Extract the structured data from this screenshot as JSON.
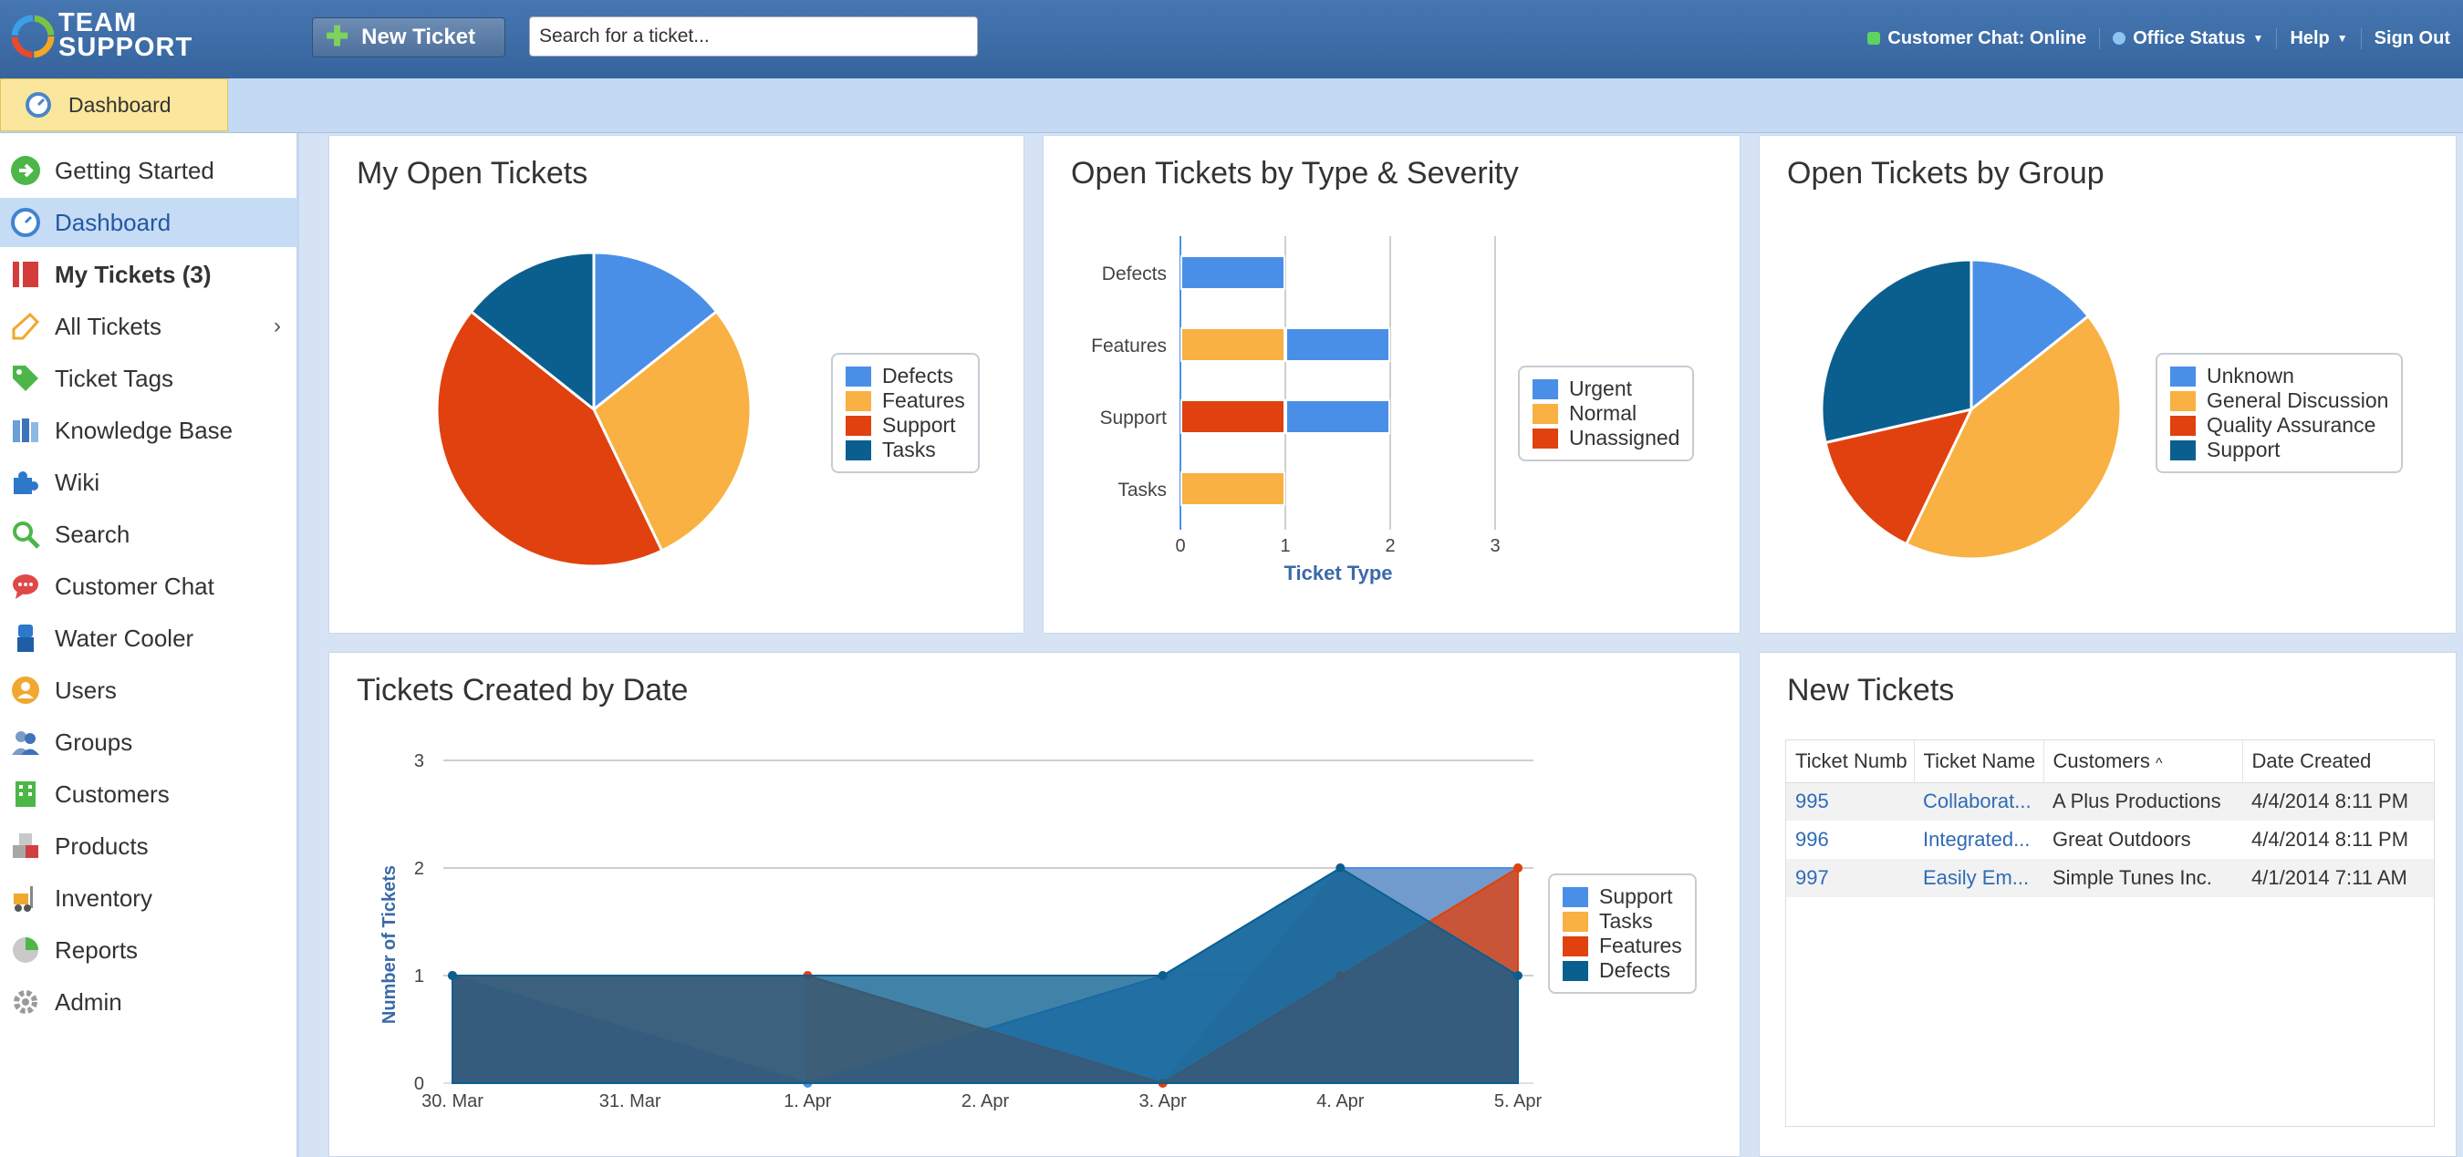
{
  "header": {
    "logo_line1": "TEAM",
    "logo_line2": "SUPPORT",
    "new_ticket_label": "New Ticket",
    "search_placeholder": "Search for a ticket...",
    "customer_chat": "Customer Chat: Online",
    "office_status": "Office Status",
    "help": "Help",
    "sign_out": "Sign Out"
  },
  "tab": {
    "label": "Dashboard"
  },
  "sidebar": {
    "items": [
      {
        "label": "Getting Started"
      },
      {
        "label": "Dashboard"
      },
      {
        "label": "My Tickets (3)"
      },
      {
        "label": "All Tickets"
      },
      {
        "label": "Ticket Tags"
      },
      {
        "label": "Knowledge Base"
      },
      {
        "label": "Wiki"
      },
      {
        "label": "Search"
      },
      {
        "label": "Customer Chat"
      },
      {
        "label": "Water Cooler"
      },
      {
        "label": "Users"
      },
      {
        "label": "Groups"
      },
      {
        "label": "Customers"
      },
      {
        "label": "Products"
      },
      {
        "label": "Inventory"
      },
      {
        "label": "Reports"
      },
      {
        "label": "Admin"
      }
    ]
  },
  "colors": {
    "blue": "#4a8fe7",
    "orange": "#f8b142",
    "red": "#e0410e",
    "navy": "#0b5f8f"
  },
  "panels": {
    "my_open": {
      "title": "My Open Tickets"
    },
    "type_severity": {
      "title": "Open Tickets by Type & Severity"
    },
    "by_group": {
      "title": "Open Tickets by Group"
    },
    "by_date": {
      "title": "Tickets Created by Date"
    },
    "new_tickets": {
      "title": "New Tickets"
    }
  },
  "chart_data": [
    {
      "type": "pie",
      "title": "My Open Tickets",
      "labels": [
        "Defects",
        "Features",
        "Support",
        "Tasks"
      ],
      "values": [
        1,
        2,
        3,
        1
      ]
    },
    {
      "type": "bar",
      "orientation": "horizontal",
      "stacked": true,
      "title": "Open Tickets by Type & Severity",
      "categories": [
        "Defects",
        "Features",
        "Support",
        "Tasks"
      ],
      "xlabel": "Ticket Type",
      "xlim": [
        0,
        3
      ],
      "xticks": [
        "0",
        "1",
        "2",
        "3"
      ],
      "series": [
        {
          "name": "Urgent",
          "values": [
            1,
            1,
            1,
            0
          ]
        },
        {
          "name": "Normal",
          "values": [
            0,
            1,
            0,
            1
          ]
        },
        {
          "name": "Unassigned",
          "values": [
            0,
            0,
            1,
            0
          ]
        }
      ]
    },
    {
      "type": "pie",
      "title": "Open Tickets by Group",
      "labels": [
        "Unknown",
        "General Discussion",
        "Quality Assurance",
        "Support"
      ],
      "values": [
        1,
        3,
        1,
        2
      ]
    },
    {
      "type": "area",
      "title": "Tickets Created by Date",
      "ylabel": "Number of Tickets",
      "categories": [
        "30. Mar",
        "31. Mar",
        "1. Apr",
        "2. Apr",
        "3. Apr",
        "4. Apr",
        "5. Apr"
      ],
      "ylim": [
        0,
        3
      ],
      "yticks": [
        "0",
        "1",
        "2",
        "3"
      ],
      "series": [
        {
          "name": "Support",
          "values": [
            1,
            0,
            null,
            null,
            1,
            2,
            2
          ]
        },
        {
          "name": "Tasks",
          "values": [
            1,
            null,
            1,
            null,
            1,
            2,
            2
          ]
        },
        {
          "name": "Features",
          "values": [
            1,
            null,
            1,
            null,
            1,
            1,
            2
          ]
        },
        {
          "name": "Defects",
          "values": [
            1,
            null,
            null,
            null,
            1,
            2,
            1
          ]
        }
      ],
      "draw": {
        "Support": [
          [
            0,
            1
          ],
          [
            2,
            0
          ],
          [
            4,
            1
          ],
          [
            5,
            2
          ],
          [
            6,
            2
          ]
        ],
        "Tasks": [
          [
            0,
            1
          ],
          [
            2,
            0
          ],
          [
            2,
            1
          ],
          [
            4,
            0
          ],
          [
            5,
            2
          ],
          [
            6,
            2
          ]
        ],
        "Features": [
          [
            0,
            1
          ],
          [
            2,
            1
          ],
          [
            4,
            0
          ],
          [
            5,
            1
          ],
          [
            6,
            2
          ]
        ],
        "Defects": [
          [
            0,
            1
          ],
          [
            4,
            1
          ],
          [
            5,
            2
          ],
          [
            6,
            1
          ]
        ]
      }
    }
  ],
  "new_tickets": {
    "columns": [
      "Ticket Numb",
      "Ticket Name",
      "Customers",
      "Date Created"
    ],
    "rows": [
      {
        "number": "995",
        "name": "Collaborat...",
        "customer": "A Plus Productions",
        "date": "4/4/2014 8:11 PM"
      },
      {
        "number": "996",
        "name": "Integrated...",
        "customer": "Great Outdoors",
        "date": "4/4/2014 8:11 PM"
      },
      {
        "number": "997",
        "name": "Easily Em...",
        "customer": "Simple Tunes Inc.",
        "date": "4/1/2014 7:11 AM"
      }
    ]
  }
}
